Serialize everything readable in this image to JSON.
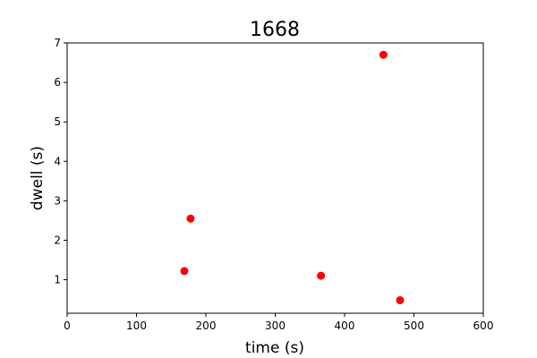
{
  "chart_data": {
    "type": "scatter",
    "title": "1668",
    "xlabel": "time (s)",
    "ylabel": "dwell (s)",
    "xlim": [
      0,
      600
    ],
    "ylim": [
      0.15,
      7.0
    ],
    "xticks": [
      0,
      100,
      200,
      300,
      400,
      500,
      600
    ],
    "yticks": [
      1,
      2,
      3,
      4,
      5,
      6,
      7
    ],
    "grid": false,
    "marker_color": "#ff0000",
    "series": [
      {
        "points": [
          {
            "x": 169,
            "y": 1.22
          },
          {
            "x": 178,
            "y": 2.55
          },
          {
            "x": 366,
            "y": 1.1
          },
          {
            "x": 456,
            "y": 6.7
          },
          {
            "x": 480,
            "y": 0.48
          }
        ]
      }
    ]
  }
}
